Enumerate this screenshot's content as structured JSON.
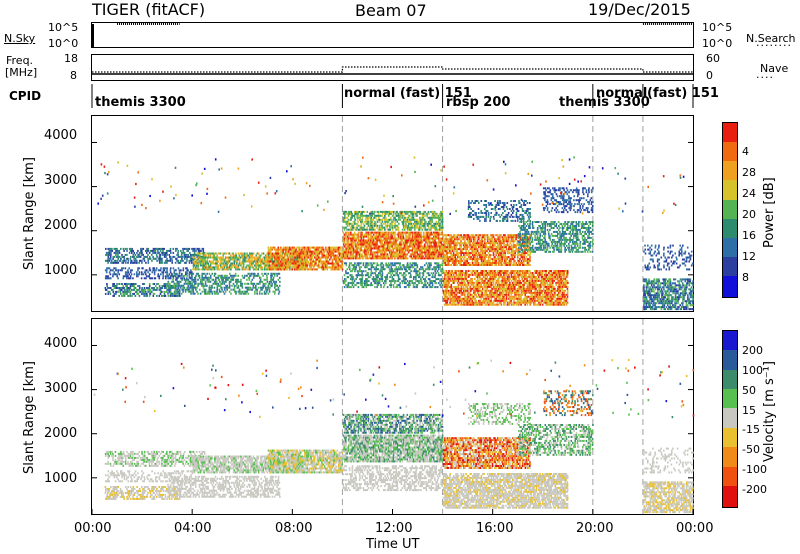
{
  "header": {
    "radar": "TIGER (fitACF)",
    "beam": "Beam 07",
    "date": "19/Dec/2015"
  },
  "top_panels": {
    "nsky_label": "N.Sky",
    "nsky_ticks": [
      "10^5",
      "10^0"
    ],
    "nsearch_label": "N.Search",
    "freq_label_1": "Freq.",
    "freq_label_2": "[MHz]",
    "freq_ticks": [
      "18",
      "8"
    ],
    "nave_ticks": [
      "60",
      "0"
    ],
    "nave_label": "Nave",
    "cpid_label": "CPID"
  },
  "cpid_modes": [
    {
      "label": "themis 3300",
      "start_hour": 0.0
    },
    {
      "label": "normal (fast) 151",
      "start_hour": 10.0
    },
    {
      "label": "rbsp 200",
      "start_hour": 14.0
    },
    {
      "label": "themis 3300",
      "start_hour": 20.0
    },
    {
      "label": "normal",
      "start_hour": 20.0
    },
    {
      "label": "(fast) 151",
      "start_hour": 22.0
    }
  ],
  "xaxis": {
    "title": "Time UT",
    "ticks": [
      "00:00",
      "04:00",
      "08:00",
      "12:00",
      "16:00",
      "20:00",
      "00:00"
    ]
  },
  "chart_data": [
    {
      "type": "heatmap",
      "title": "",
      "xlabel": "Time UT",
      "ylabel": "Slant Range [km]",
      "x_tick_labels": [
        "00:00",
        "04:00",
        "08:00",
        "12:00",
        "16:00",
        "20:00",
        "00:00"
      ],
      "xlim_hours": [
        0,
        24
      ],
      "yticks": [
        "1000",
        "2000",
        "3000",
        "4000"
      ],
      "ylim": [
        180,
        4600
      ],
      "colorbar_label": "Power [dB]",
      "colorbar_ticks": [
        "4",
        "8",
        "12",
        "16",
        "20",
        "24",
        "28"
      ],
      "colorbar_range": [
        0,
        32
      ],
      "colors": [
        "#1010d8",
        "#2a3fa0",
        "#2e6fa8",
        "#2e8c6e",
        "#54b454",
        "#d6c22a",
        "#f0a020",
        "#f06a12",
        "#e81e10"
      ]
    },
    {
      "type": "heatmap",
      "title": "",
      "xlabel": "Time UT",
      "ylabel": "Slant Range [km]",
      "x_tick_labels": [
        "00:00",
        "04:00",
        "08:00",
        "12:00",
        "16:00",
        "20:00",
        "00:00"
      ],
      "xlim_hours": [
        0,
        24
      ],
      "yticks": [
        "1000",
        "2000",
        "3000",
        "4000"
      ],
      "ylim": [
        180,
        4600
      ],
      "colorbar_label": "Velocity [m s⁻¹]",
      "colorbar_ticks": [
        "200",
        "100",
        "50",
        "15",
        "-15",
        "-50",
        "-100",
        "-200"
      ],
      "colorbar_range": [
        -250,
        250
      ],
      "colors": [
        "#1818d0",
        "#2a5a9a",
        "#3c8c6c",
        "#58c050",
        "#c8c8c0",
        "#e8c030",
        "#f08a18",
        "#f05010",
        "#e01010"
      ]
    }
  ],
  "colors": {
    "frame": "#000000",
    "dashed_separator": "#a0a0a0",
    "ground_scatter": "#c0c0b8"
  }
}
